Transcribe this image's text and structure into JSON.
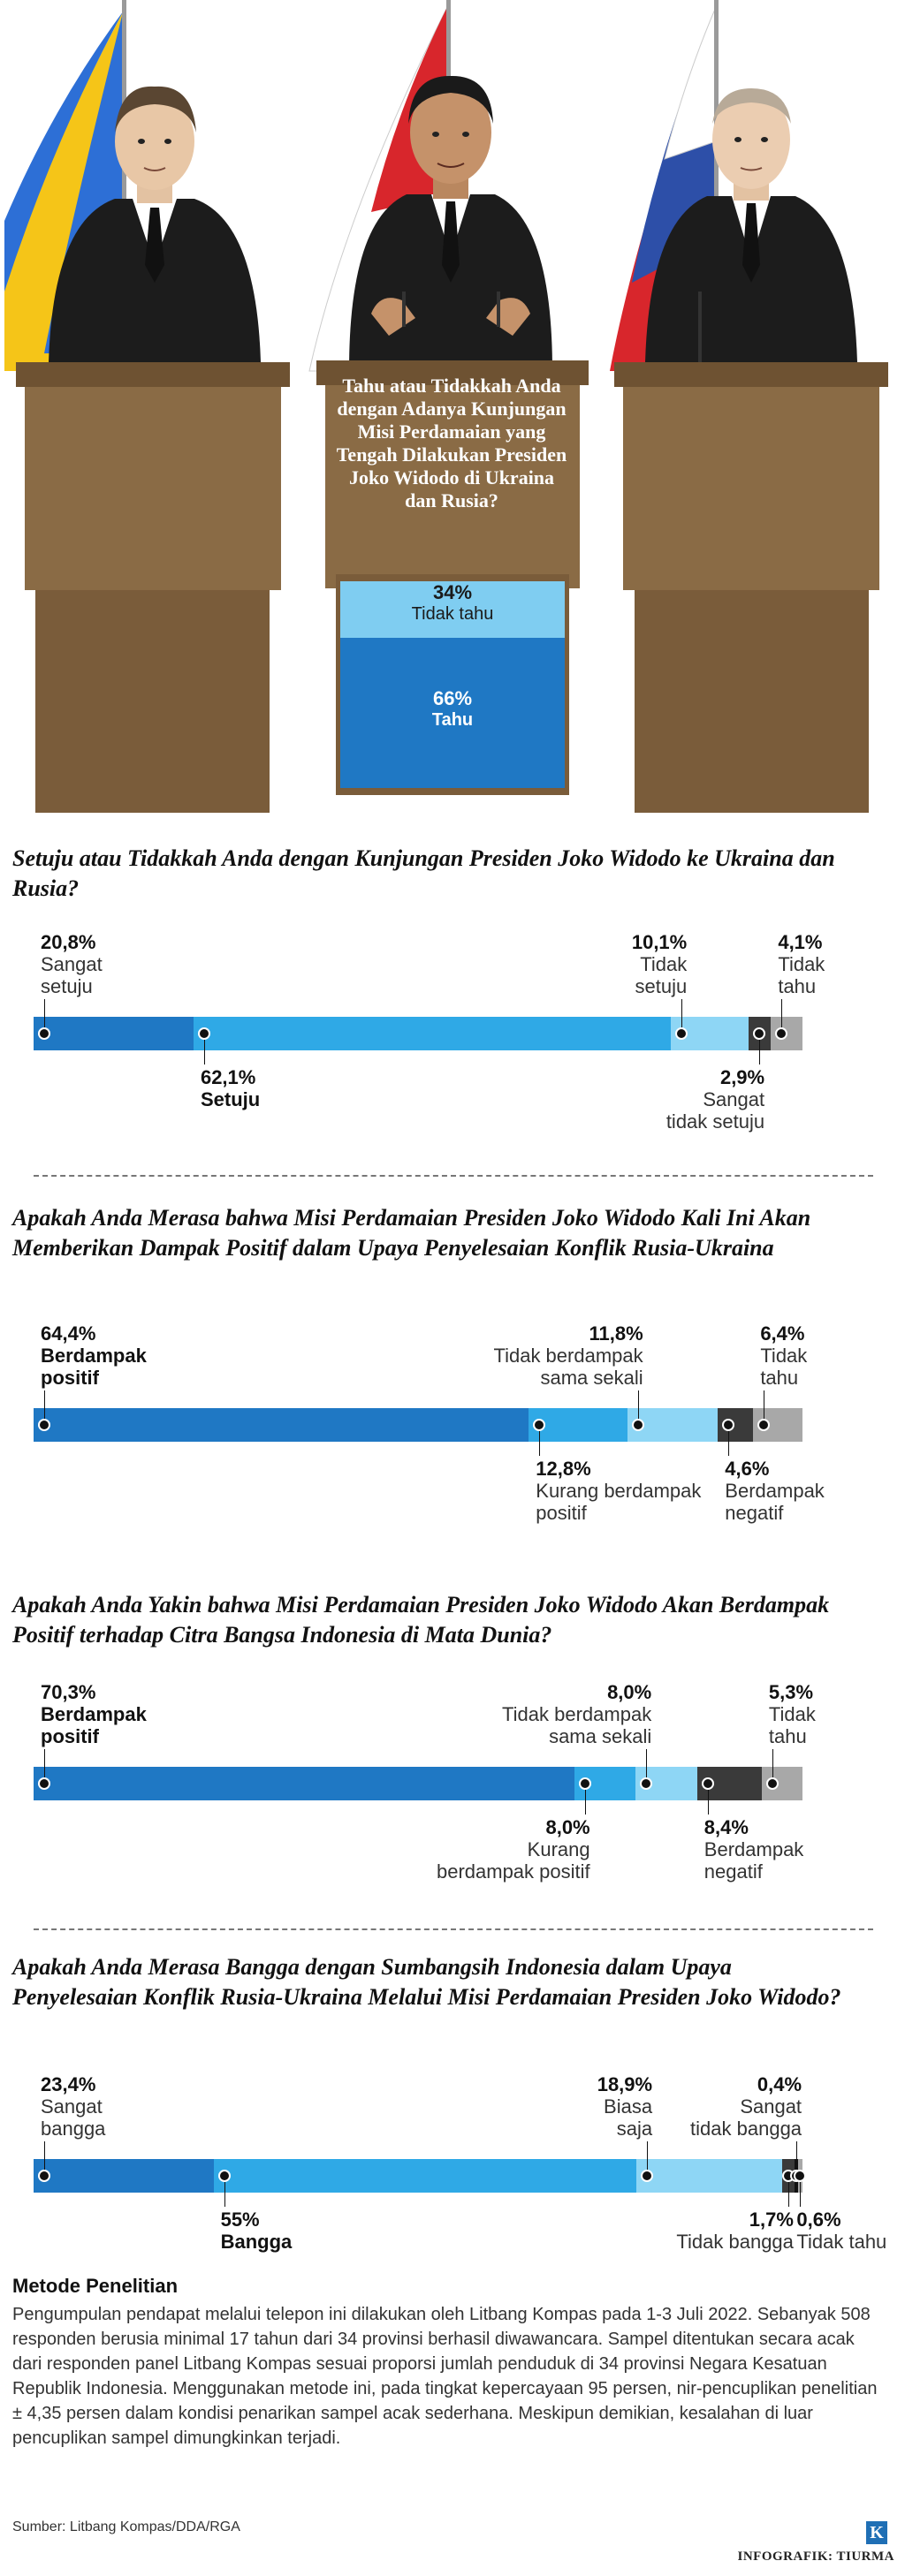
{
  "hero": {
    "question": "Tahu atau Tidakkah Anda dengan Adanya Kunjungan Misi Perdamaian yang Tengah Dilakukan Presiden Joko Widodo di Ukraina dan Rusia?",
    "segments": [
      {
        "pct": "34%",
        "label": "Tidak tahu",
        "color": "#7fcdf1"
      },
      {
        "pct": "66%",
        "label": "Tahu",
        "color": "#1f78c4"
      }
    ]
  },
  "colors": {
    "dark_blue": "#1f78c4",
    "mid_blue": "#2fa9e6",
    "light_blue": "#8ed6f5",
    "dark_gray": "#3a3a3a",
    "light_gray": "#a8a8a8",
    "podium": "#8a6b45"
  },
  "chart_data": [
    {
      "type": "bar",
      "title": "Setuju atau Tidakkah Anda dengan Kunjungan Presiden Joko Widodo ke Ukraina dan Rusia?",
      "categories": [
        "Sangat setuju",
        "Setuju",
        "Tidak setuju",
        "Sangat tidak setuju",
        "Tidak tahu"
      ],
      "values": [
        20.8,
        62.1,
        10.1,
        2.9,
        4.1
      ],
      "value_labels": [
        "20,8%",
        "62,1%",
        "10,1%",
        "2,9%",
        "4,1%"
      ],
      "label_lines": [
        [
          "Sangat",
          "setuju"
        ],
        [
          "Setuju"
        ],
        [
          "Tidak",
          "setuju"
        ],
        [
          "Sangat",
          "tidak setuju"
        ],
        [
          "Tidak",
          "tahu"
        ]
      ],
      "colors": [
        "#1f78c4",
        "#2fa9e6",
        "#8ed6f5",
        "#3a3a3a",
        "#a8a8a8"
      ]
    },
    {
      "type": "bar",
      "title": "Apakah Anda Merasa bahwa Misi Perdamaian Presiden Joko Widodo Kali Ini Akan Memberikan Dampak Positif dalam Upaya Penyelesaian Konflik Rusia-Ukraina",
      "categories": [
        "Berdampak positif",
        "Kurang berdampak positif",
        "Tidak berdampak sama sekali",
        "Berdampak negatif",
        "Tidak tahu"
      ],
      "values": [
        64.4,
        12.8,
        11.8,
        4.6,
        6.4
      ],
      "value_labels": [
        "64,4%",
        "12,8%",
        "11,8%",
        "4,6%",
        "6,4%"
      ],
      "label_lines": [
        [
          "Berdampak",
          "positif"
        ],
        [
          "Kurang berdampak",
          "positif"
        ],
        [
          "Tidak berdampak",
          "sama sekali"
        ],
        [
          "Berdampak",
          "negatif"
        ],
        [
          "Tidak",
          "tahu"
        ]
      ],
      "colors": [
        "#1f78c4",
        "#2fa9e6",
        "#8ed6f5",
        "#3a3a3a",
        "#a8a8a8"
      ]
    },
    {
      "type": "bar",
      "title": "Apakah Anda Yakin bahwa Misi Perdamaian Presiden Joko Widodo Akan Berdampak Positif terhadap Citra Bangsa Indonesia di Mata Dunia?",
      "categories": [
        "Berdampak positif",
        "Kurang berdampak positif",
        "Tidak berdampak sama sekali",
        "Berdampak negatif",
        "Tidak tahu"
      ],
      "values": [
        70.3,
        8.0,
        8.0,
        8.4,
        5.3
      ],
      "value_labels": [
        "70,3%",
        "8,0%",
        "8,0%",
        "8,4%",
        "5,3%"
      ],
      "label_lines": [
        [
          "Berdampak",
          "positif"
        ],
        [
          "Kurang",
          "berdampak positif"
        ],
        [
          "Tidak berdampak",
          "sama sekali"
        ],
        [
          "Berdampak",
          "negatif"
        ],
        [
          "Tidak",
          "tahu"
        ]
      ],
      "colors": [
        "#1f78c4",
        "#2fa9e6",
        "#8ed6f5",
        "#3a3a3a",
        "#a8a8a8"
      ]
    },
    {
      "type": "bar",
      "title": "Apakah Anda Merasa Bangga dengan Sumbangsih Indonesia dalam Upaya Penyelesaian Konflik Rusia-Ukraina Melalui Misi Perdamaian Presiden Joko Widodo?",
      "categories": [
        "Sangat bangga",
        "Bangga",
        "Biasa saja",
        "Tidak bangga",
        "Sangat tidak bangga",
        "Tidak tahu"
      ],
      "values": [
        23.4,
        55,
        18.9,
        1.7,
        0.4,
        0.6
      ],
      "value_labels": [
        "23,4%",
        "55%",
        "18,9%",
        "1,7%",
        "0,4%",
        "0,6%"
      ],
      "label_lines": [
        [
          "Sangat",
          "bangga"
        ],
        [
          "Bangga"
        ],
        [
          "Biasa",
          "saja"
        ],
        [
          "Tidak bangga"
        ],
        [
          "Sangat",
          "tidak bangga"
        ],
        [
          "Tidak tahu"
        ]
      ],
      "colors": [
        "#1f78c4",
        "#2fa9e6",
        "#8ed6f5",
        "#3a3a3a",
        "#111111",
        "#a8a8a8"
      ]
    }
  ],
  "method": {
    "title": "Metode Penelitian",
    "text": "Pengumpulan pendapat melalui telepon ini dilakukan oleh Litbang Kompas pada 1-3 Juli 2022. Sebanyak 508 responden berusia minimal 17 tahun dari 34 provinsi berhasil diwawancara. Sampel ditentukan secara acak dari responden panel Litbang Kompas sesuai proporsi jumlah penduduk di 34 provinsi Negara Kesatuan Republik Indonesia. Menggunakan metode ini, pada tingkat kepercayaan 95 persen, nir-pencuplikan penelitian ± 4,35 persen dalam kondisi penarikan sampel acak sederhana. Meskipun demikian, kesalahan di luar pencuplikan sampel dimungkinkan terjadi."
  },
  "source": "Sumber: Litbang Kompas/DDA/RGA",
  "logo": "K",
  "credit": "INFOGRAFIK: TIURMA"
}
